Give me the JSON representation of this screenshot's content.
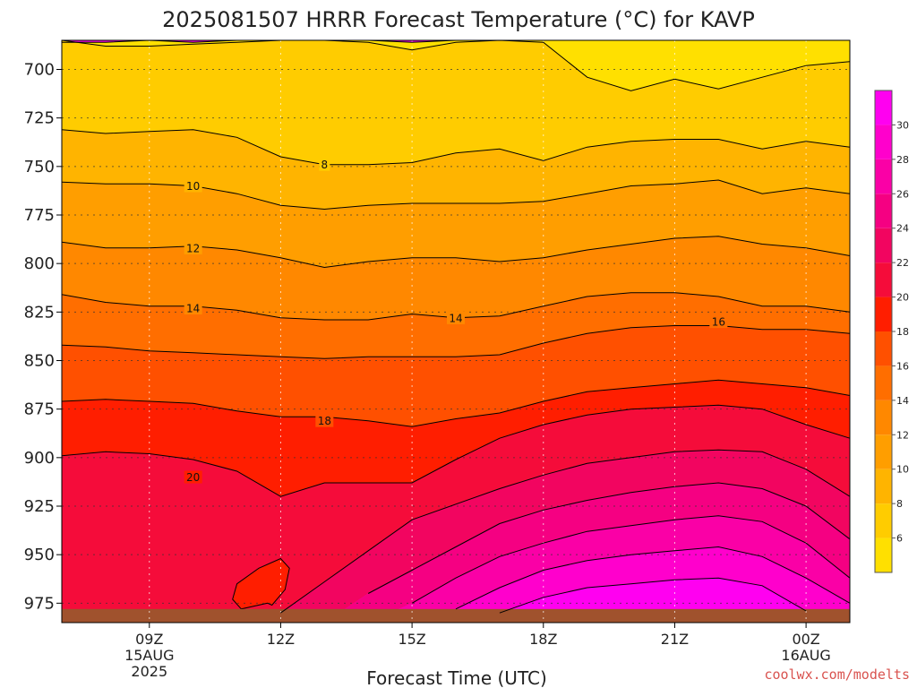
{
  "chart_data": {
    "type": "contour",
    "title": "2025081507 HRRR Forecast Temperature (°C) for KAVP",
    "xlabel": "Forecast Time (UTC)",
    "ylabel": "",
    "credit": "coolwx.com/modelts",
    "y_axis": {
      "quantity": "pressure (hPa)",
      "inverted": true,
      "ylim": [
        985,
        685
      ],
      "ticks": [
        700,
        725,
        750,
        775,
        800,
        825,
        850,
        875,
        900,
        925,
        950,
        975
      ]
    },
    "x_axis": {
      "xlim_hours_utc_from_15aug_00z": [
        7,
        25
      ],
      "ticks": [
        {
          "hour": 9,
          "label": "09Z",
          "sub1": "15AUG",
          "sub2": "2025"
        },
        {
          "hour": 12,
          "label": "12Z",
          "sub1": "",
          "sub2": ""
        },
        {
          "hour": 15,
          "label": "15Z",
          "sub1": "",
          "sub2": ""
        },
        {
          "hour": 18,
          "label": "18Z",
          "sub1": "",
          "sub2": ""
        },
        {
          "hour": 21,
          "label": "21Z",
          "sub1": "",
          "sub2": ""
        },
        {
          "hour": 24,
          "label": "00Z",
          "sub1": "16AUG",
          "sub2": ""
        }
      ]
    },
    "grid": true,
    "colorbar": {
      "ticks": [
        6,
        8,
        10,
        12,
        14,
        16,
        18,
        20,
        22,
        24,
        26,
        28,
        30
      ],
      "bands": [
        {
          "lo": 4,
          "hi": 6,
          "color": "#FFE000"
        },
        {
          "lo": 6,
          "hi": 8,
          "color": "#FFCC00"
        },
        {
          "lo": 8,
          "hi": 10,
          "color": "#FFB400"
        },
        {
          "lo": 10,
          "hi": 12,
          "color": "#FF9E00"
        },
        {
          "lo": 12,
          "hi": 14,
          "color": "#FF8800"
        },
        {
          "lo": 14,
          "hi": 16,
          "color": "#FF6E00"
        },
        {
          "lo": 16,
          "hi": 18,
          "color": "#FF5000"
        },
        {
          "lo": 18,
          "hi": 20,
          "color": "#FF1E00"
        },
        {
          "lo": 20,
          "hi": 22,
          "color": "#F50C3A"
        },
        {
          "lo": 22,
          "hi": 24,
          "color": "#F20560"
        },
        {
          "lo": 24,
          "hi": 26,
          "color": "#F50082"
        },
        {
          "lo": 26,
          "hi": 28,
          "color": "#FA00A6"
        },
        {
          "lo": 28,
          "hi": 30,
          "color": "#FF00CC"
        },
        {
          "lo": 30,
          "hi": 32,
          "color": "#FF00F0"
        }
      ]
    },
    "ground_color": "#A0522D",
    "ground_pressure_hpa": 978,
    "sample_times_hours": [
      7,
      8,
      9,
      10,
      11,
      12,
      13,
      14,
      15,
      16,
      17,
      18,
      19,
      20,
      21,
      22,
      23,
      24,
      25
    ],
    "isotherms": [
      {
        "value": 4,
        "pressure": [
          686,
          686,
          685,
          686,
          685,
          685,
          685,
          685,
          686,
          685,
          685,
          685,
          685,
          685,
          685,
          685,
          685,
          685,
          685
        ]
      },
      {
        "value": 6,
        "pressure": [
          685,
          688,
          688,
          687,
          686,
          685,
          685,
          686,
          690,
          686,
          685,
          686,
          704,
          711,
          705,
          710,
          704,
          698,
          696
        ]
      },
      {
        "value": 8,
        "pressure": [
          731,
          733,
          732,
          731,
          735,
          745,
          749,
          749,
          748,
          743,
          741,
          747,
          740,
          737,
          736,
          736,
          741,
          737,
          740
        ]
      },
      {
        "value": 10,
        "pressure": [
          758,
          759,
          759,
          760,
          764,
          770,
          772,
          770,
          769,
          769,
          769,
          768,
          764,
          760,
          759,
          757,
          764,
          761,
          764
        ]
      },
      {
        "value": 12,
        "pressure": [
          789,
          792,
          792,
          791,
          793,
          797,
          802,
          799,
          797,
          797,
          799,
          797,
          793,
          790,
          787,
          786,
          790,
          792,
          796
        ]
      },
      {
        "value": 14,
        "pressure": [
          816,
          820,
          822,
          822,
          824,
          828,
          829,
          829,
          826,
          828,
          827,
          822,
          817,
          815,
          815,
          817,
          822,
          822,
          825
        ]
      },
      {
        "value": 16,
        "pressure": [
          842,
          843,
          845,
          846,
          847,
          848,
          849,
          848,
          848,
          848,
          847,
          841,
          836,
          833,
          832,
          832,
          834,
          834,
          836
        ]
      },
      {
        "value": 18,
        "pressure": [
          871,
          870,
          871,
          872,
          876,
          879,
          879,
          881,
          884,
          880,
          877,
          871,
          866,
          864,
          862,
          860,
          862,
          864,
          868
        ]
      },
      {
        "value": 20,
        "pressure": [
          899,
          897,
          898,
          901,
          907,
          920,
          913,
          913,
          913,
          901,
          890,
          883,
          878,
          875,
          874,
          873,
          875,
          883,
          890
        ]
      },
      {
        "value": 22,
        "pressure": [
          985,
          985,
          985,
          985,
          985,
          980,
          964,
          948,
          932,
          924,
          916,
          909,
          903,
          900,
          897,
          896,
          897,
          906,
          920
        ]
      },
      {
        "value": 24,
        "pressure": [
          985,
          985,
          985,
          985,
          985,
          985,
          985,
          970,
          958,
          946,
          934,
          927,
          922,
          918,
          915,
          913,
          916,
          925,
          942
        ]
      },
      {
        "value": 26,
        "pressure": [
          985,
          985,
          985,
          985,
          985,
          985,
          985,
          985,
          975,
          962,
          951,
          944,
          938,
          935,
          932,
          930,
          933,
          944,
          962
        ]
      },
      {
        "value": 28,
        "pressure": [
          985,
          985,
          985,
          985,
          985,
          985,
          985,
          985,
          985,
          978,
          967,
          958,
          953,
          950,
          948,
          946,
          951,
          962,
          975
        ]
      },
      {
        "value": 30,
        "pressure": [
          985,
          985,
          985,
          985,
          985,
          985,
          985,
          985,
          985,
          985,
          980,
          972,
          967,
          965,
          963,
          962,
          966,
          979,
          985
        ]
      }
    ],
    "warm_pocket": {
      "value": 22,
      "fill_color": "#FF1E00",
      "outline_hours": [
        11.7,
        11.1,
        10.9,
        11.0,
        11.5,
        12.0,
        12.2,
        12.1,
        11.8,
        11.7
      ],
      "outline_pressure": [
        975,
        978,
        973,
        965,
        957,
        952,
        957,
        968,
        976,
        975
      ]
    },
    "contour_labels": [
      {
        "text": "10",
        "hour": 10.0,
        "pressure": 760
      },
      {
        "text": "8",
        "hour": 13.0,
        "pressure": 749
      },
      {
        "text": "12",
        "hour": 10.0,
        "pressure": 792
      },
      {
        "text": "14",
        "hour": 10.0,
        "pressure": 823
      },
      {
        "text": "14",
        "hour": 16.0,
        "pressure": 828
      },
      {
        "text": "16",
        "hour": 22.0,
        "pressure": 830
      },
      {
        "text": "18",
        "hour": 13.0,
        "pressure": 881
      },
      {
        "text": "20",
        "hour": 10.0,
        "pressure": 910
      }
    ]
  }
}
